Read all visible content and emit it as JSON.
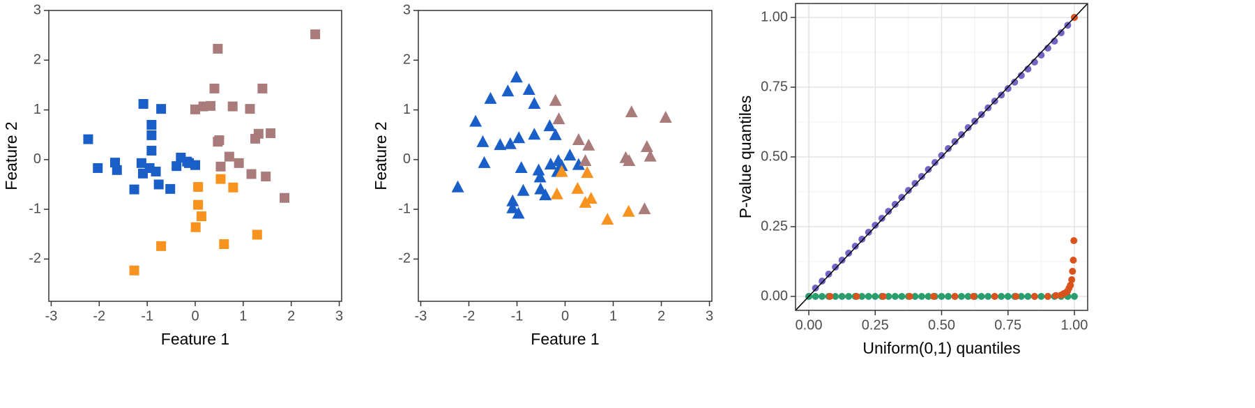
{
  "chart_data": [
    {
      "type": "scatter",
      "marker": "square",
      "xlabel": "Feature 1",
      "ylabel": "Feature 2",
      "xlim": [
        -3.05,
        3.05
      ],
      "ylim": [
        -2.85,
        3
      ],
      "xticks": [
        -3,
        -2,
        -1,
        0,
        1,
        2,
        3
      ],
      "yticks": [
        -2,
        -1,
        0,
        1,
        2,
        3
      ],
      "grid": false,
      "series": [
        {
          "color": "#1a5fc8",
          "x": [
            -2.23,
            -2.03,
            -1.67,
            -1.63,
            -1.27,
            -1.08,
            -1.12,
            -1.09,
            -0.95,
            -0.91,
            -0.91,
            -0.91,
            -0.82,
            -0.76,
            -0.71,
            -0.52,
            -0.39,
            -0.3,
            -0.17,
            -0.13,
            0.0
          ],
          "values": [
            0.41,
            -0.17,
            -0.06,
            -0.21,
            -0.6,
            1.12,
            -0.07,
            -0.28,
            -0.17,
            0.7,
            0.49,
            0.18,
            -0.24,
            -0.5,
            1.02,
            -0.59,
            -0.13,
            0.04,
            -0.04,
            -0.07,
            -0.11
          ]
        },
        {
          "color": "#f7931e",
          "x": [
            0.06,
            0.06,
            0.13,
            0.01,
            -0.71,
            -1.27,
            0.53,
            0.79,
            0.6,
            1.29
          ],
          "values": [
            -0.55,
            -0.91,
            -1.14,
            -1.36,
            -1.74,
            -2.23,
            -0.39,
            -0.56,
            -1.7,
            -1.51
          ]
        },
        {
          "color": "#aa7b7b",
          "x": [
            2.5,
            0.47,
            0.4,
            0.0,
            0.17,
            0.32,
            0.78,
            1.14,
            1.4,
            1.32,
            1.57,
            1.25,
            0.5,
            0.47,
            0.71,
            0.91,
            0.53,
            1.17,
            1.47,
            1.86
          ],
          "values": [
            2.52,
            2.23,
            1.43,
            1.01,
            1.07,
            1.08,
            1.07,
            1.02,
            1.43,
            0.52,
            0.53,
            0.42,
            0.39,
            0.36,
            0.06,
            -0.07,
            -0.14,
            -0.29,
            -0.34,
            -0.77
          ]
        }
      ]
    },
    {
      "type": "scatter",
      "marker": "triangle",
      "xlabel": "Feature 1",
      "ylabel": "Feature 2",
      "xlim": [
        -3.05,
        3.05
      ],
      "ylim": [
        -2.85,
        3
      ],
      "xticks": [
        -3,
        -2,
        -1,
        0,
        1,
        2,
        3
      ],
      "yticks": [
        -2,
        -1,
        0,
        1,
        2,
        3
      ],
      "grid": false,
      "series": [
        {
          "color": "#1a5fc8",
          "x": [
            -2.23,
            -1.86,
            -1.71,
            -1.68,
            -1.55,
            -1.35,
            -1.19,
            -1.14,
            -1.01,
            -0.96,
            -0.91,
            -0.75,
            -0.64,
            -1.09,
            -1.09,
            -0.97,
            -0.87,
            -0.64,
            -0.55,
            -0.52,
            -0.51,
            -0.41,
            -0.32,
            -0.3,
            -0.2,
            -0.16,
            -0.14,
            -0.07,
            0.1,
            0.28
          ],
          "values": [
            -0.56,
            0.76,
            0.35,
            -0.07,
            1.22,
            0.29,
            1.37,
            0.31,
            1.65,
            0.43,
            -0.17,
            1.4,
            1.12,
            -0.84,
            -0.98,
            -1.09,
            -0.63,
            0.5,
            -0.22,
            -0.36,
            -0.6,
            -0.72,
            0.67,
            -0.1,
            0.49,
            -0.25,
            -0.03,
            -0.13,
            0.08,
            -0.11
          ]
        },
        {
          "color": "#f7931e",
          "x": [
            -0.17,
            -0.07,
            0.26,
            0.46,
            0.42,
            0.54,
            0.88,
            1.32
          ],
          "values": [
            -0.7,
            -0.25,
            -0.59,
            -0.27,
            -0.87,
            -0.79,
            -1.21,
            -1.05
          ]
        },
        {
          "color": "#aa7b7b",
          "x": [
            -0.2,
            -0.13,
            0.28,
            0.42,
            0.49,
            1.38,
            1.26,
            1.33,
            1.7,
            1.77,
            2.09,
            1.65
          ],
          "values": [
            1.18,
            0.81,
            0.39,
            -0.03,
            0.28,
            0.95,
            0.03,
            -0.03,
            0.25,
            0.06,
            0.84,
            -1.0
          ]
        }
      ]
    },
    {
      "type": "scatter",
      "marker": "circle",
      "xlabel": "Uniform(0,1) quantiles",
      "ylabel": "P-value quantiles",
      "xlim": [
        -0.05,
        1.05
      ],
      "ylim": [
        -0.05,
        1.05
      ],
      "grid": true,
      "identity_line": true,
      "xticks": [
        {
          "value": 0,
          "label": "0.00"
        },
        {
          "value": 0.25,
          "label": "0.25"
        },
        {
          "value": 0.5,
          "label": "0.50"
        },
        {
          "value": 0.75,
          "label": "0.75"
        },
        {
          "value": 1,
          "label": "1.00"
        }
      ],
      "yticks": [
        {
          "value": 0,
          "label": "0.00"
        },
        {
          "value": 0.25,
          "label": "0.25"
        },
        {
          "value": 0.5,
          "label": "0.50"
        },
        {
          "value": 0.75,
          "label": "0.75"
        },
        {
          "value": 1,
          "label": "1.00"
        }
      ],
      "series": [
        {
          "color": "#7464c4",
          "x": [
            0,
            0.025,
            0.05,
            0.075,
            0.1,
            0.125,
            0.15,
            0.175,
            0.2,
            0.225,
            0.25,
            0.275,
            0.3,
            0.325,
            0.35,
            0.375,
            0.4,
            0.425,
            0.45,
            0.475,
            0.5,
            0.525,
            0.55,
            0.575,
            0.6,
            0.625,
            0.65,
            0.675,
            0.7,
            0.725,
            0.75,
            0.775,
            0.8,
            0.825,
            0.85,
            0.875,
            0.9,
            0.925,
            0.95,
            0.975,
            1
          ],
          "values": [
            0,
            0.03,
            0.055,
            0.08,
            0.105,
            0.13,
            0.155,
            0.18,
            0.205,
            0.23,
            0.255,
            0.28,
            0.305,
            0.33,
            0.355,
            0.38,
            0.405,
            0.43,
            0.455,
            0.48,
            0.505,
            0.53,
            0.555,
            0.58,
            0.605,
            0.628,
            0.652,
            0.676,
            0.7,
            0.722,
            0.745,
            0.768,
            0.792,
            0.815,
            0.84,
            0.865,
            0.89,
            0.915,
            0.945,
            0.972,
            1
          ]
        },
        {
          "color": "#2a9d6f",
          "x": [
            0,
            0.025,
            0.05,
            0.075,
            0.1,
            0.125,
            0.15,
            0.175,
            0.2,
            0.225,
            0.25,
            0.275,
            0.3,
            0.325,
            0.35,
            0.375,
            0.4,
            0.425,
            0.45,
            0.475,
            0.5,
            0.525,
            0.55,
            0.575,
            0.6,
            0.625,
            0.65,
            0.675,
            0.7,
            0.725,
            0.75,
            0.775,
            0.8,
            0.825,
            0.85,
            0.875,
            0.9,
            0.925,
            0.95,
            0.975,
            1
          ],
          "values": [
            0,
            0,
            0,
            0,
            0,
            0,
            0,
            0,
            0,
            0,
            0,
            0,
            0,
            0,
            0,
            0,
            0,
            0,
            0,
            0,
            0,
            0,
            0,
            0,
            0,
            0,
            0,
            0,
            0,
            0,
            0,
            0,
            0,
            0,
            0,
            0,
            0,
            0,
            0,
            0,
            0
          ]
        },
        {
          "color": "#d9531e",
          "x": [
            0.08,
            0.18,
            0.28,
            0.38,
            0.47,
            0.55,
            0.62,
            0.7,
            0.78,
            0.85,
            0.9,
            0.93,
            0.95,
            0.96,
            0.97,
            0.975,
            0.98,
            0.985,
            0.99,
            0.993,
            0.996,
            0.998,
            1
          ],
          "values": [
            0,
            0,
            0,
            0,
            0,
            0,
            0,
            0,
            0,
            0,
            0,
            0.003,
            0.005,
            0.01,
            0.015,
            0.02,
            0.03,
            0.04,
            0.06,
            0.09,
            0.13,
            0.2,
            1
          ]
        }
      ]
    }
  ]
}
